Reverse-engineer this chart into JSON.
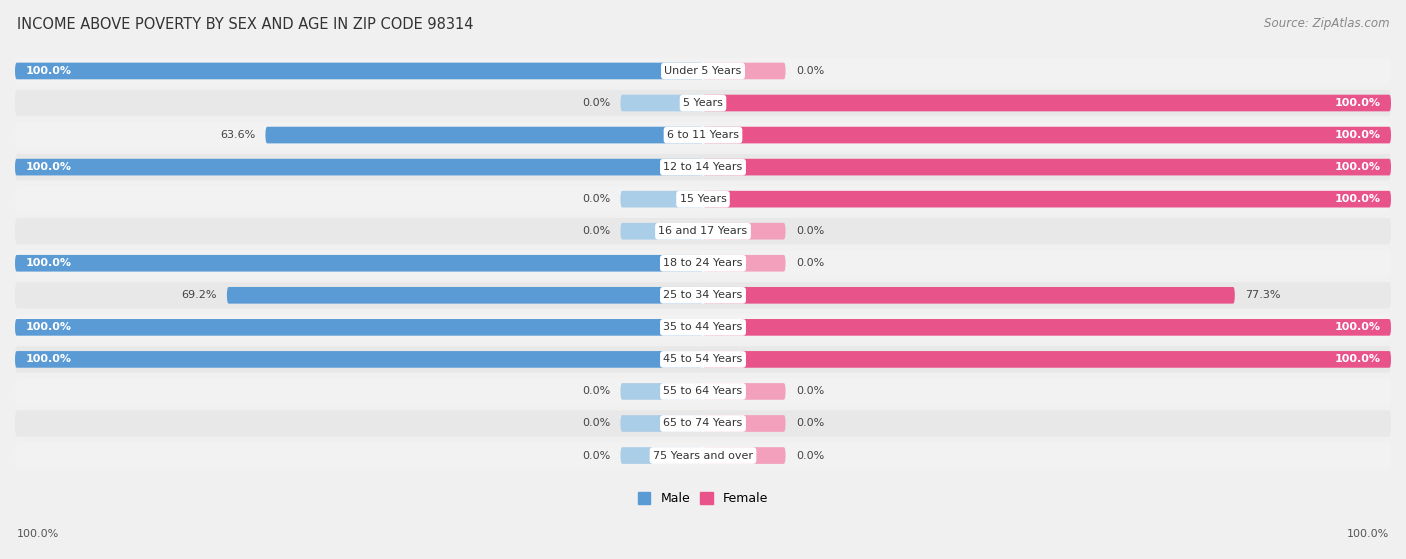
{
  "title": "INCOME ABOVE POVERTY BY SEX AND AGE IN ZIP CODE 98314",
  "source": "Source: ZipAtlas.com",
  "age_groups": [
    "Under 5 Years",
    "5 Years",
    "6 to 11 Years",
    "12 to 14 Years",
    "15 Years",
    "16 and 17 Years",
    "18 to 24 Years",
    "25 to 34 Years",
    "35 to 44 Years",
    "45 to 54 Years",
    "55 to 64 Years",
    "65 to 74 Years",
    "75 Years and over"
  ],
  "male_values": [
    100.0,
    0.0,
    63.6,
    100.0,
    0.0,
    0.0,
    100.0,
    69.2,
    100.0,
    100.0,
    0.0,
    0.0,
    0.0
  ],
  "female_values": [
    0.0,
    100.0,
    100.0,
    100.0,
    100.0,
    0.0,
    0.0,
    77.3,
    100.0,
    100.0,
    0.0,
    0.0,
    0.0
  ],
  "male_color_full": "#5b9bd5",
  "male_color_zero": "#aacde8",
  "female_color_full": "#e8538a",
  "female_color_zero": "#f2a0bc",
  "row_color_odd": "#f2f2f2",
  "row_color_even": "#e8e8e8",
  "bg_color": "#f0f0f0",
  "title_fontsize": 10.5,
  "source_fontsize": 8.5,
  "label_fontsize": 8.0,
  "bar_height": 0.52,
  "zero_bar_width": 12.0,
  "xlim": 100,
  "axis_label_bottom_left": "100.0%",
  "axis_label_bottom_right": "100.0%"
}
